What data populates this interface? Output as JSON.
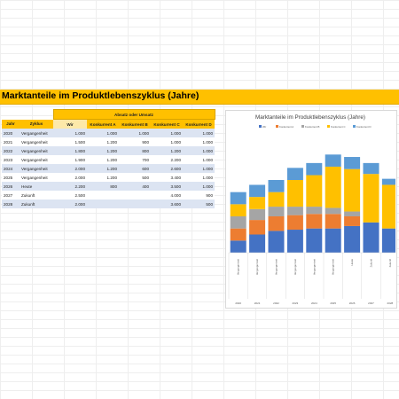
{
  "title": "Marktanteile im Produktlebenszyklus (Jahre)",
  "table": {
    "group_header": "Absatz oder Umsatz",
    "headers": [
      "Jahr",
      "Zyklus",
      "Wir",
      "Konkurrent A",
      "Konkurrent B",
      "Konkurrent C",
      "Konkurrent D"
    ],
    "rows": [
      [
        "2020",
        "Vergangenheit",
        "1.000",
        "1.000",
        "1.000",
        "1.000",
        "1.000"
      ],
      [
        "2021",
        "Vergangenheit",
        "1.500",
        "1.200",
        "900",
        "1.000",
        "1.000"
      ],
      [
        "2022",
        "Vergangenheit",
        "1.800",
        "1.200",
        "800",
        "1.200",
        "1.000"
      ],
      [
        "2023",
        "Vergangenheit",
        "1.900",
        "1.200",
        "700",
        "2.200",
        "1.000"
      ],
      [
        "2024",
        "Vergangenheit",
        "2.000",
        "1.200",
        "600",
        "2.600",
        "1.000"
      ],
      [
        "2025",
        "Vergangenheit",
        "2.000",
        "1.200",
        "500",
        "3.400",
        "1.000"
      ],
      [
        "2026",
        "Heute",
        "2.200",
        "800",
        "400",
        "3.500",
        "1.000"
      ],
      [
        "2027",
        "Zukunft",
        "2.500",
        "",
        "",
        "4.000",
        "900"
      ],
      [
        "2028",
        "Zukunft",
        "2.000",
        "",
        "",
        "3.600",
        "500"
      ]
    ]
  },
  "chart_data": {
    "type": "bar",
    "stacked": true,
    "title": "Marktanteile im Produktlebenszyklus (Jahre)",
    "categories": [
      "2020",
      "2021",
      "2022",
      "2023",
      "2024",
      "2025",
      "2026",
      "2027",
      "2028"
    ],
    "cycle_labels": [
      "Vergangenheit",
      "Vergangenheit",
      "Vergangenheit",
      "Vergangenheit",
      "Vergangenheit",
      "Vergangenheit",
      "Heute",
      "Zukunft",
      "Zukunft"
    ],
    "series": [
      {
        "name": "Wir",
        "color": "#4472c4",
        "values": [
          1000,
          1500,
          1800,
          1900,
          2000,
          2000,
          2200,
          2500,
          2000
        ]
      },
      {
        "name": "Konkurrent A",
        "color": "#ed7d31",
        "values": [
          1000,
          1200,
          1200,
          1200,
          1200,
          1200,
          800,
          0,
          0
        ]
      },
      {
        "name": "Konkurrent B",
        "color": "#a5a5a5",
        "values": [
          1000,
          900,
          800,
          700,
          600,
          500,
          400,
          0,
          0
        ]
      },
      {
        "name": "Konkurrent C",
        "color": "#ffc000",
        "values": [
          1000,
          1000,
          1200,
          2200,
          2600,
          3400,
          3500,
          4000,
          3600
        ]
      },
      {
        "name": "Konkurrent D",
        "color": "#5b9bd5",
        "values": [
          1000,
          1000,
          1000,
          1000,
          1000,
          1000,
          1000,
          900,
          500
        ]
      }
    ],
    "ylim": [
      0,
      9000
    ],
    "legend_position": "top",
    "grid": false
  },
  "colors": {
    "accent": "#ffc000",
    "row_band": "#dce4f2"
  }
}
